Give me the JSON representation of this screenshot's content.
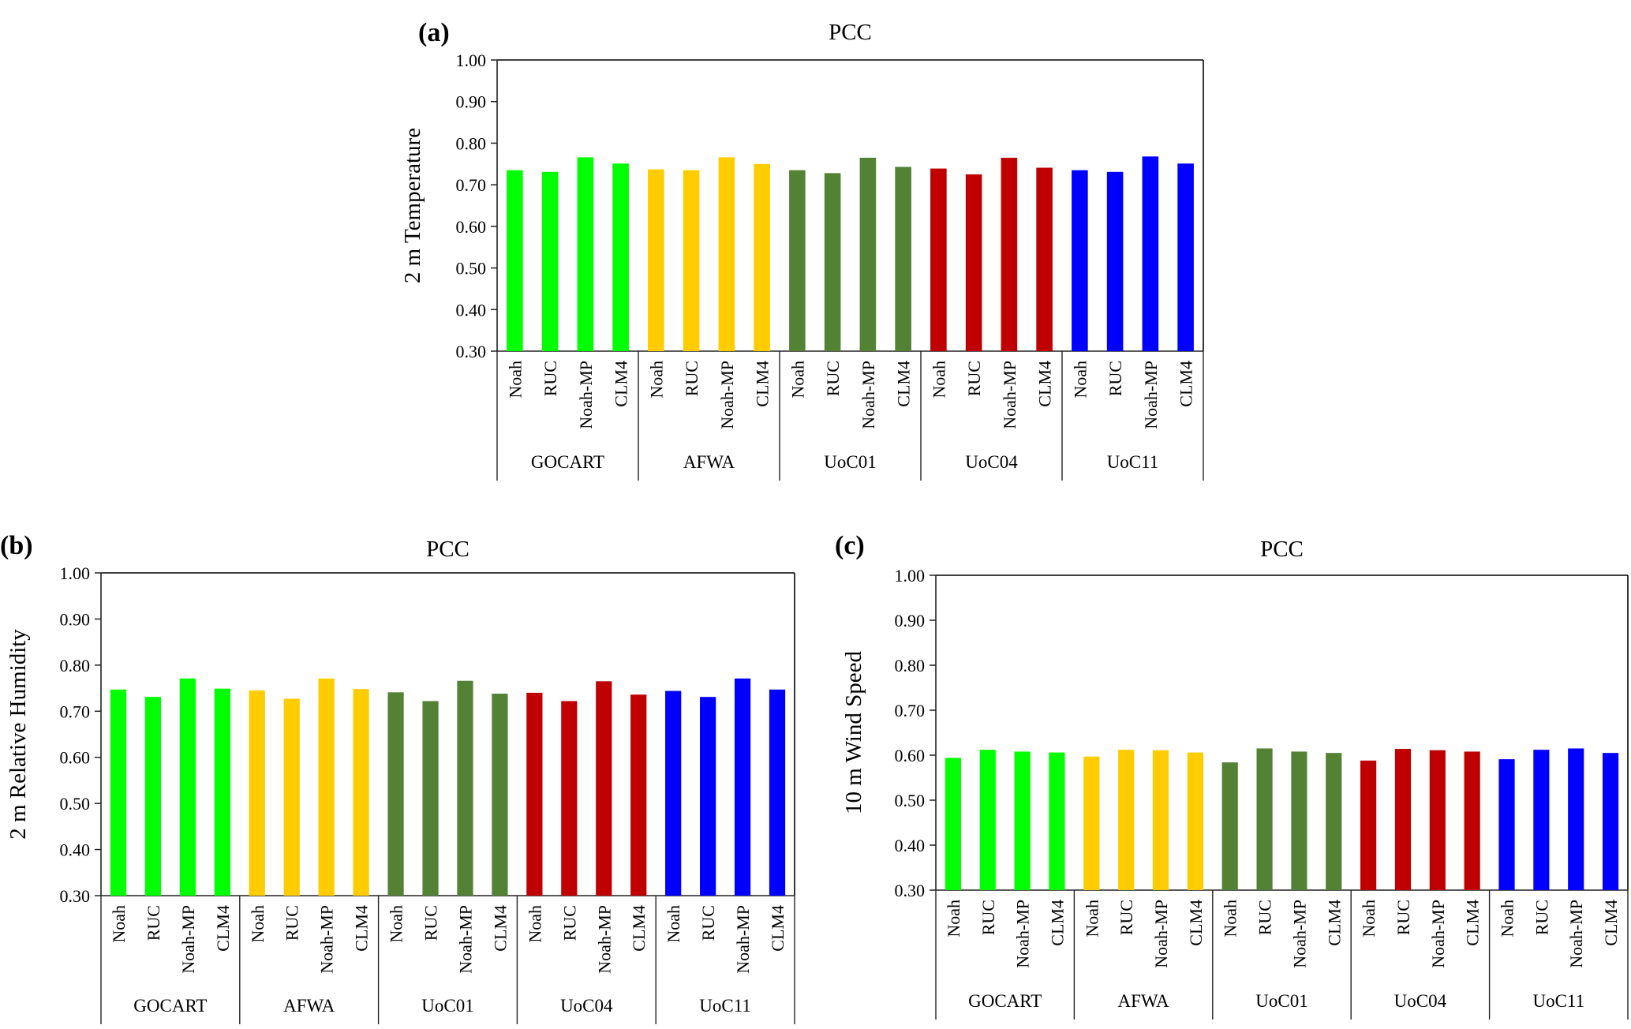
{
  "figure": {
    "panels": [
      "(a)",
      "(b)",
      "(c)"
    ]
  },
  "palette": {
    "GOCART": "#00ff00",
    "AFWA": "#ffcc00",
    "UoC01": "#548235",
    "UoC04": "#c00000",
    "UoC11": "#0000ff"
  },
  "chart_data": [
    {
      "panel_label": "(a)",
      "type": "bar",
      "title": "PCC",
      "xlabel": "",
      "ylabel": "2 m Temperature",
      "ylim": [
        0.3,
        1.0
      ],
      "yticks": [
        "0.30",
        "0.40",
        "0.50",
        "0.60",
        "0.70",
        "0.80",
        "0.90",
        "1.00"
      ],
      "grid": false,
      "legend": "none",
      "groups": [
        "GOCART",
        "AFWA",
        "UoC01",
        "UoC04",
        "UoC11"
      ],
      "categories": [
        "Noah",
        "RUC",
        "Noah-MP",
        "CLM4"
      ],
      "series": [
        {
          "name": "GOCART",
          "values": [
            0.735,
            0.731,
            0.766,
            0.751
          ]
        },
        {
          "name": "AFWA",
          "values": [
            0.737,
            0.735,
            0.766,
            0.75
          ]
        },
        {
          "name": "UoC01",
          "values": [
            0.735,
            0.728,
            0.765,
            0.743
          ]
        },
        {
          "name": "UoC04",
          "values": [
            0.739,
            0.725,
            0.765,
            0.741
          ]
        },
        {
          "name": "UoC11",
          "values": [
            0.735,
            0.731,
            0.768,
            0.751
          ]
        }
      ]
    },
    {
      "panel_label": "(b)",
      "type": "bar",
      "title": "PCC",
      "xlabel": "",
      "ylabel": "2 m Relative Humidity",
      "ylim": [
        0.3,
        1.0
      ],
      "yticks": [
        "0.30",
        "0.40",
        "0.50",
        "0.60",
        "0.70",
        "0.80",
        "0.90",
        "1.00"
      ],
      "grid": false,
      "legend": "none",
      "groups": [
        "GOCART",
        "AFWA",
        "UoC01",
        "UoC04",
        "UoC11"
      ],
      "categories": [
        "Noah",
        "RUC",
        "Noah-MP",
        "CLM4"
      ],
      "series": [
        {
          "name": "GOCART",
          "values": [
            0.747,
            0.731,
            0.771,
            0.749
          ]
        },
        {
          "name": "AFWA",
          "values": [
            0.745,
            0.727,
            0.771,
            0.748
          ]
        },
        {
          "name": "UoC01",
          "values": [
            0.741,
            0.722,
            0.766,
            0.738
          ]
        },
        {
          "name": "UoC04",
          "values": [
            0.74,
            0.722,
            0.765,
            0.736
          ]
        },
        {
          "name": "UoC11",
          "values": [
            0.744,
            0.731,
            0.771,
            0.747
          ]
        }
      ]
    },
    {
      "panel_label": "(c)",
      "type": "bar",
      "title": "PCC",
      "xlabel": "",
      "ylabel": "10 m Wind Speed",
      "ylim": [
        0.3,
        1.0
      ],
      "yticks": [
        "0.30",
        "0.40",
        "0.50",
        "0.60",
        "0.70",
        "0.80",
        "0.90",
        "1.00"
      ],
      "grid": false,
      "legend": "none",
      "groups": [
        "GOCART",
        "AFWA",
        "UoC01",
        "UoC04",
        "UoC11"
      ],
      "categories": [
        "Noah",
        "RUC",
        "Noah-MP",
        "CLM4"
      ],
      "series": [
        {
          "name": "GOCART",
          "values": [
            0.594,
            0.612,
            0.608,
            0.606
          ]
        },
        {
          "name": "AFWA",
          "values": [
            0.597,
            0.612,
            0.611,
            0.606
          ]
        },
        {
          "name": "UoC01",
          "values": [
            0.584,
            0.615,
            0.608,
            0.605
          ]
        },
        {
          "name": "UoC04",
          "values": [
            0.588,
            0.614,
            0.611,
            0.608
          ]
        },
        {
          "name": "UoC11",
          "values": [
            0.591,
            0.612,
            0.615,
            0.605
          ]
        }
      ]
    }
  ]
}
